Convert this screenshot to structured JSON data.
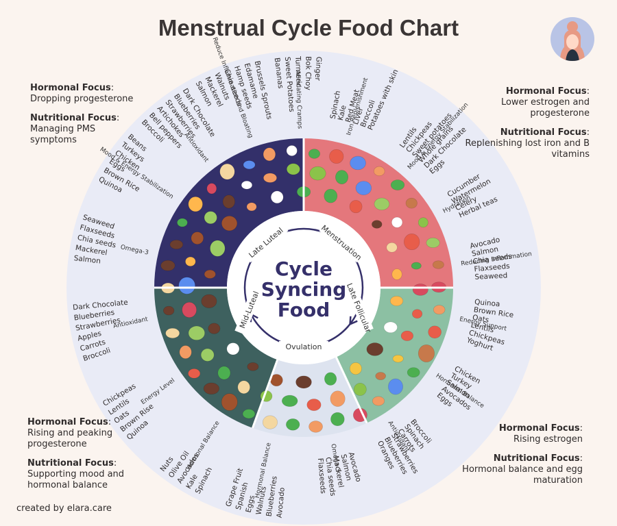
{
  "title": "Menstrual Cycle Food Chart",
  "credit": "created by elara.care",
  "center": {
    "line1": "Cycle",
    "line2": "Syncing",
    "line3": "Food"
  },
  "phases": {
    "menstruation": "Menstruation",
    "late_follicular": "Late Follicular",
    "ovulation": "Ovulation",
    "mid_luteal": "Mid-Luteal",
    "late_luteal": "Late Luteal"
  },
  "corners": {
    "top_left": {
      "h_label": "Hormonal Focus",
      "h_text": "Dropping progesterone",
      "n_label": "Nutritional Focus",
      "n_text": "Managing PMS symptoms"
    },
    "top_right": {
      "h_label": "Hormonal Focus",
      "h_text": "Lower estrogen and progesterone",
      "n_label": "Nutritional Focus",
      "n_text": "Replenishing lost iron and B vitamins"
    },
    "bottom_left": {
      "h_label": "Hormonal Focus",
      "h_text": "Rising and peaking progesterone",
      "n_label": "Nutritional Focus",
      "n_text": "Supporting mood and hormonal balance"
    },
    "bottom_right": {
      "h_label": "Hormonal Focus",
      "h_text": "Rising estrogen",
      "n_label": "Nutritional Focus",
      "n_text": "Hormonal balance and egg maturation"
    }
  },
  "categories": [
    {
      "label": "Iron Replenishment",
      "foods": [
        "Spinach",
        "Kale",
        "Red Meat",
        "Liver",
        "Broccoli",
        "Potatoes with skin"
      ]
    },
    {
      "label": "Mood & Energy Stabilization",
      "foods": [
        "Lentils",
        "Chickpeas",
        "Sweet potatoes",
        "Whole grains",
        "Dark Chocolate",
        "Eggs"
      ]
    },
    {
      "label": "Hydration",
      "foods": [
        "Cucumber",
        "Watermelon",
        "Celery",
        "Herbal teas"
      ]
    },
    {
      "label": "Reducing Inflammation",
      "foods": [
        "Avocado",
        "Salmon",
        "Chia seeds",
        "Flaxseeds",
        "Seaweed"
      ]
    },
    {
      "label": "Energy Support",
      "foods": [
        "Quinoa",
        "Brown Rice",
        "Oats",
        "Lentils",
        "Chickpeas",
        "Yoghurt"
      ]
    },
    {
      "label": "Hormonal Balance",
      "foods": [
        "Chicken",
        "Turkey",
        "Salmon",
        "Avocados",
        "Eggs"
      ]
    },
    {
      "label": "Antioxidant",
      "foods": [
        "Broccoli",
        "Spinach",
        "Carrots",
        "Strawberries",
        "Blueberries",
        "Oranges"
      ]
    },
    {
      "label": "Omega-3",
      "foods": [
        "Avocado",
        "Salmon",
        "Mackerel",
        "Chia seeds",
        "Flaxseeds"
      ]
    },
    {
      "label": "Hormonal Balance",
      "foods": [
        "Avocado",
        "Blueberries",
        "Walnuts",
        "Eggs",
        "Spanish",
        "Grape Fruit"
      ]
    },
    {
      "label": "Hormonal Balance",
      "foods": [
        "Spinach",
        "Kale",
        "Avocados",
        "Olive Oil",
        "Nuts"
      ]
    },
    {
      "label": "Energy Level",
      "foods": [
        "Quinoa",
        "Brown Rise",
        "Oats",
        "Lentils",
        "Chickpeas"
      ]
    },
    {
      "label": "Antioxidant",
      "foods": [
        "Broccoli",
        "Carrots",
        "Apples",
        "Strawberries",
        "Blueberries",
        "Dark Chocolate"
      ]
    },
    {
      "label": "Omega-3",
      "foods": [
        "Salmon",
        "Mackerel",
        "Chia seeds",
        "Flaxseeds",
        "Seaweed"
      ]
    },
    {
      "label": "Mood & Energy Stabilization",
      "foods": [
        "Quinoa",
        "Brown Rice",
        "Eggs",
        "Chicken",
        "Turkeys",
        "Beans"
      ]
    },
    {
      "label": "Antioxidant",
      "foods": [
        "Broccoli",
        "Bell peppers",
        "Artichokes",
        "Strawberries",
        "Blueberries",
        "Dark Chocolate"
      ]
    },
    {
      "label": "Reduce Inflammation and Bloating",
      "foods": [
        "Salmon",
        "Mackerel",
        "Walnuts",
        "Chia seeds",
        "Hamp seeds",
        "Edamame",
        "Brussels Sprouts"
      ]
    },
    {
      "label": "Alleviating Cramps",
      "foods": [
        "Bananas",
        "Sweet Potatoes",
        "Turmeric",
        "Bok Choy",
        "Ginger"
      ]
    }
  ],
  "colors": {
    "background": "#fbf4ef",
    "outer_ring": "#e9ebf6",
    "menstruation": "#e4777c",
    "late_follicular": "#8cc0a3",
    "ovulation": "#dde3ef",
    "mid_luteal": "#3e615f",
    "late_luteal": "#33306a",
    "center_text": "#35306a"
  }
}
